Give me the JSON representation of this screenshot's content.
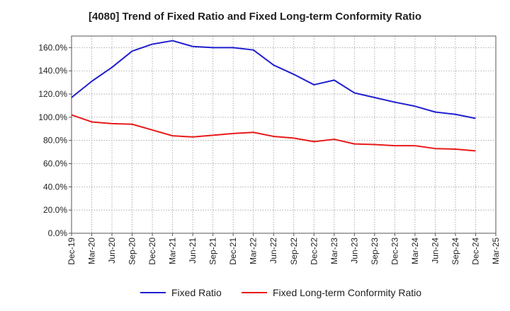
{
  "chart_data": {
    "type": "line",
    "title": "[4080]  Trend of Fixed Ratio and Fixed Long-term Conformity Ratio",
    "xlabel": "",
    "ylabel": "",
    "ylim": [
      0,
      170
    ],
    "y_ticks": [
      0,
      20,
      40,
      60,
      80,
      100,
      120,
      140,
      160
    ],
    "y_tick_labels": [
      "0.0%",
      "20.0%",
      "40.0%",
      "60.0%",
      "80.0%",
      "100.0%",
      "120.0%",
      "140.0%",
      "160.0%"
    ],
    "x": [
      "Dec-19",
      "Mar-20",
      "Jun-20",
      "Sep-20",
      "Dec-20",
      "Mar-21",
      "Jun-21",
      "Sep-21",
      "Dec-21",
      "Mar-22",
      "Jun-22",
      "Sep-22",
      "Dec-22",
      "Mar-23",
      "Jun-23",
      "Sep-23",
      "Dec-23",
      "Mar-24",
      "Jun-24",
      "Sep-24",
      "Dec-24",
      "Mar-25"
    ],
    "grid": true,
    "legend_position": "bottom",
    "series": [
      {
        "name": "Fixed Ratio",
        "color": "#1f1fd0",
        "values": [
          117,
          131,
          143,
          157,
          163,
          166,
          161,
          160,
          160,
          158,
          145,
          137,
          128,
          132,
          121,
          117,
          113,
          109.5,
          104.5,
          102.5,
          99,
          null
        ]
      },
      {
        "name": "Fixed Long-term Conformity Ratio",
        "color": "#e81a1a",
        "values": [
          102,
          96,
          94.5,
          94,
          89,
          84,
          83,
          84.5,
          86,
          87,
          83.5,
          82,
          79,
          81,
          77,
          76.5,
          75.5,
          75.5,
          73,
          72.5,
          71,
          null
        ]
      }
    ]
  }
}
